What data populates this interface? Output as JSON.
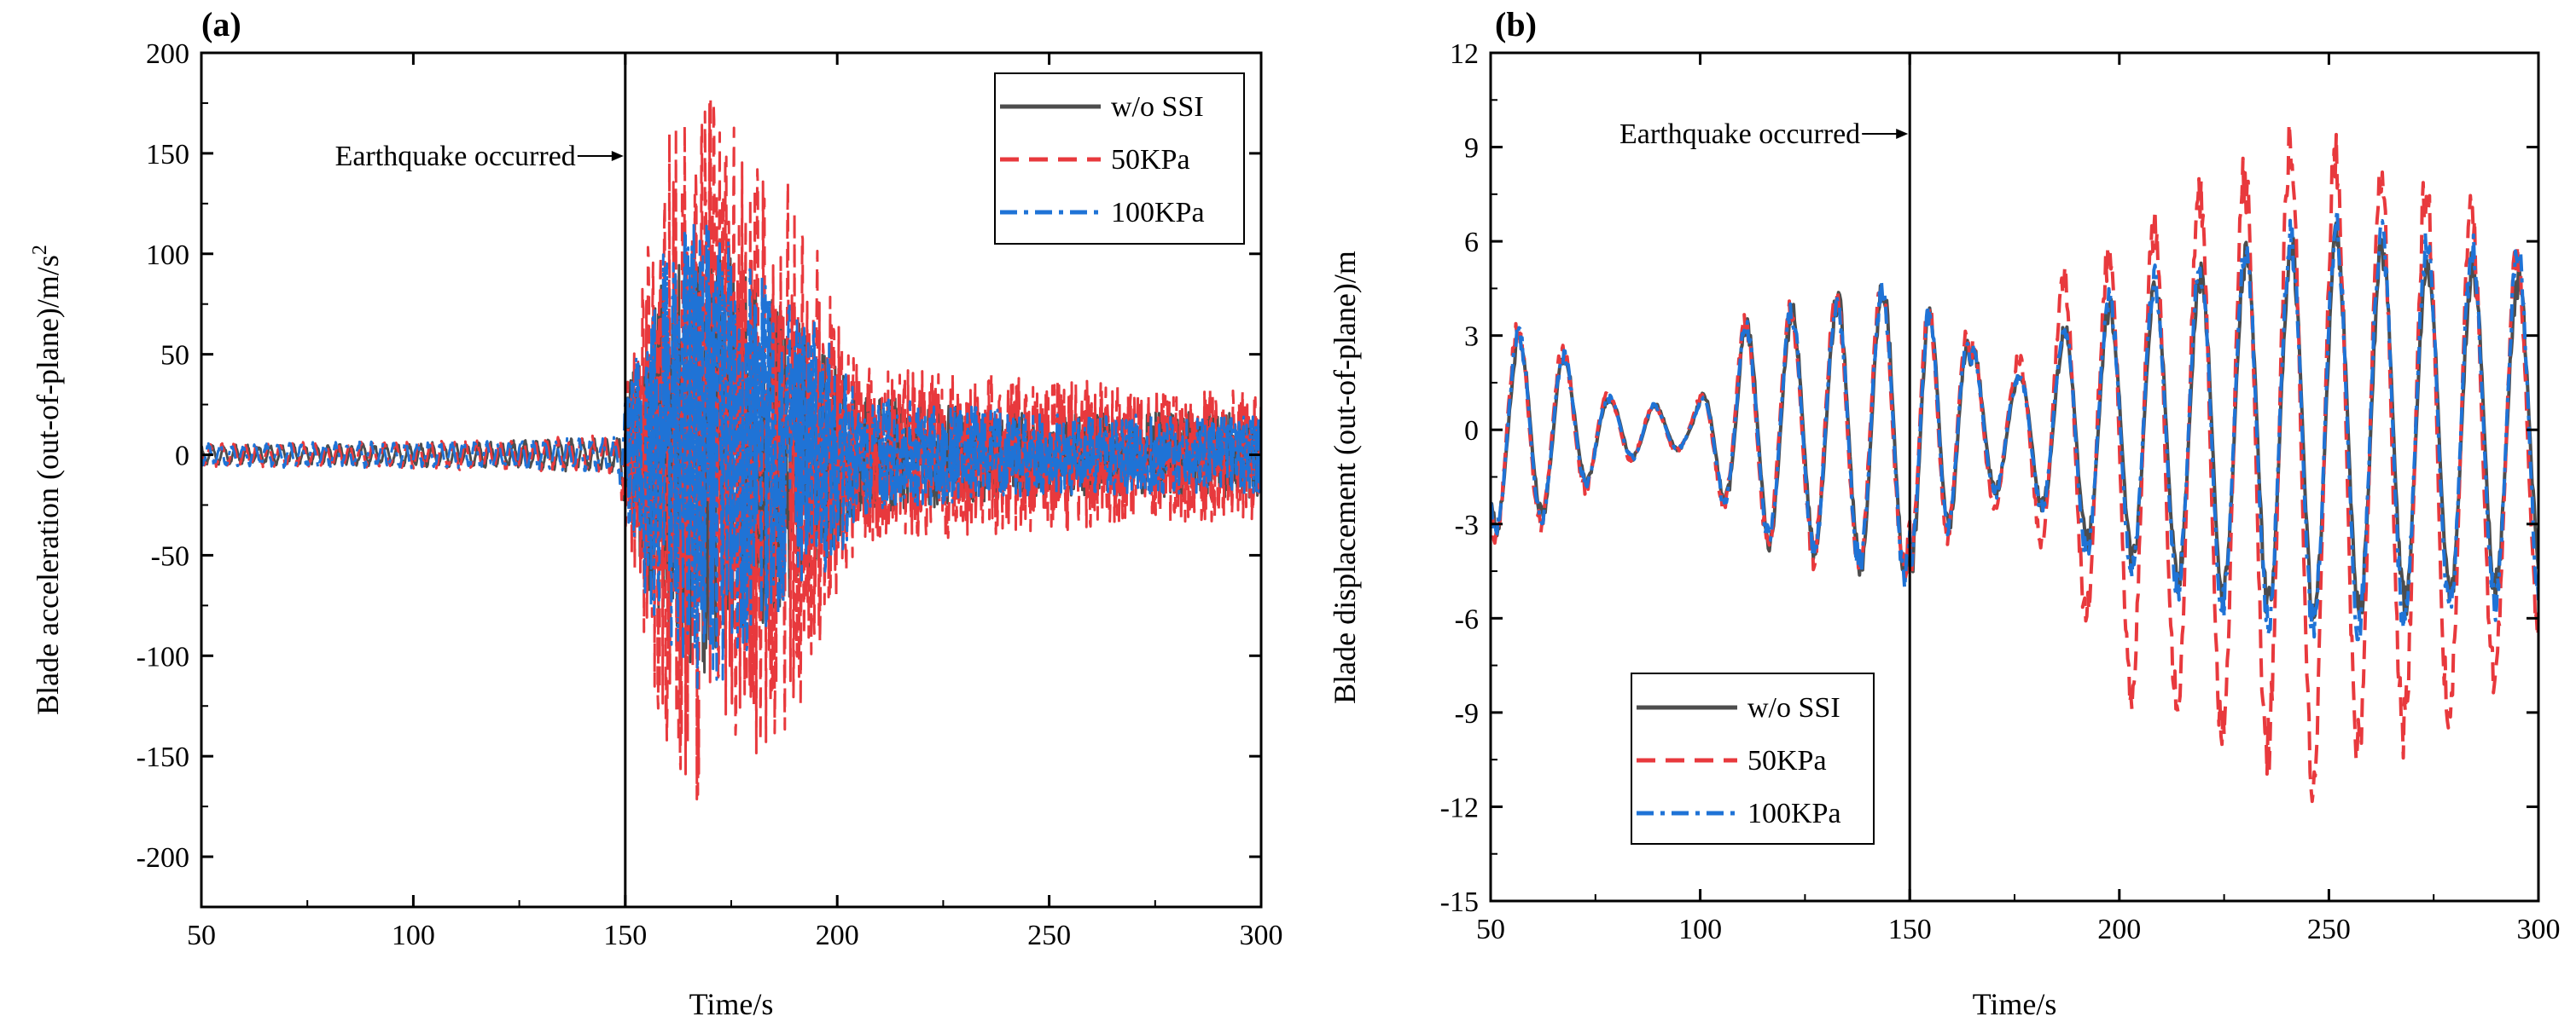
{
  "chart_data": [
    {
      "panel": "(a)",
      "type": "line",
      "xlabel": "Time/s",
      "ylabel": "Blade acceleration (out-of-plane)/m/s",
      "ylabel_sup": "2",
      "xlim": [
        50,
        300
      ],
      "ylim": [
        -225,
        200
      ],
      "xticks": [
        50,
        100,
        150,
        200,
        250,
        300
      ],
      "yticks": [
        -200,
        -150,
        -100,
        -50,
        0,
        50,
        100,
        150,
        200
      ],
      "legend_position": "top-right",
      "annotation": {
        "text": "Earthquake occurred",
        "x": 150
      },
      "series": [
        {
          "name": "w/o SSI",
          "color": "#4d4d4d",
          "dash": "solid",
          "envelope": [
            [
              50,
              5
            ],
            [
              100,
              6
            ],
            [
              148,
              9
            ],
            [
              152,
              45
            ],
            [
              160,
              100
            ],
            [
              170,
              110
            ],
            [
              180,
              90
            ],
            [
              190,
              70
            ],
            [
              200,
              50
            ],
            [
              205,
              30
            ],
            [
              250,
              20
            ],
            [
              300,
              22
            ]
          ]
        },
        {
          "name": "50KPa",
          "color": "#e8393d",
          "dash": "dashed",
          "envelope": [
            [
              50,
              6
            ],
            [
              100,
              7
            ],
            [
              148,
              10
            ],
            [
              152,
              60
            ],
            [
              160,
              165
            ],
            [
              170,
              180
            ],
            [
              180,
              150
            ],
            [
              190,
              140
            ],
            [
              200,
              70
            ],
            [
              205,
              45
            ],
            [
              250,
              38
            ],
            [
              300,
              32
            ]
          ]
        },
        {
          "name": "100KPa",
          "color": "#1f73d6",
          "dash": "dashdot",
          "envelope": [
            [
              50,
              6
            ],
            [
              100,
              7
            ],
            [
              148,
              9
            ],
            [
              152,
              50
            ],
            [
              160,
              110
            ],
            [
              170,
              120
            ],
            [
              180,
              95
            ],
            [
              190,
              75
            ],
            [
              200,
              55
            ],
            [
              205,
              30
            ],
            [
              250,
              20
            ],
            [
              300,
              20
            ]
          ]
        }
      ]
    },
    {
      "panel": "(b)",
      "type": "line",
      "xlabel": "Time/s",
      "ylabel": "Blade displacement (out-of-plane)/m",
      "xlim": [
        50,
        300
      ],
      "ylim": [
        -15,
        12
      ],
      "xticks": [
        50,
        100,
        150,
        200,
        250,
        300
      ],
      "yticks": [
        -15,
        -12,
        -9,
        -6,
        -3,
        0,
        3,
        6,
        9,
        12
      ],
      "legend_position": "bottom-left",
      "annotation": {
        "text": "Earthquake occurred",
        "x": 150
      },
      "series": [
        {
          "name": "w/o SSI",
          "color": "#4d4d4d",
          "dash": "solid",
          "envelope": [
            [
              50,
              3.2
            ],
            [
              65,
              2.6
            ],
            [
              78,
              1
            ],
            [
              88,
              0.8
            ],
            [
              98,
              0.5
            ],
            [
              110,
              3.2
            ],
            [
              130,
              4
            ],
            [
              148,
              4.6
            ],
            [
              160,
              3
            ],
            [
              175,
              1.5
            ],
            [
              190,
              3.5
            ],
            [
              210,
              4.5
            ],
            [
              230,
              5.5
            ],
            [
              250,
              6
            ],
            [
              270,
              5.5
            ],
            [
              290,
              5
            ],
            [
              300,
              4.5
            ]
          ]
        },
        {
          "name": "50KPa",
          "color": "#e8393d",
          "dash": "dashed",
          "envelope": [
            [
              50,
              3.4
            ],
            [
              65,
              2.9
            ],
            [
              78,
              1.1
            ],
            [
              88,
              0.8
            ],
            [
              98,
              0.6
            ],
            [
              110,
              3.3
            ],
            [
              130,
              4.1
            ],
            [
              148,
              4.5
            ],
            [
              160,
              3.2
            ],
            [
              175,
              2
            ],
            [
              190,
              5.5
            ],
            [
              200,
              7
            ],
            [
              215,
              8
            ],
            [
              230,
              9
            ],
            [
              245,
              10
            ],
            [
              260,
              9
            ],
            [
              275,
              8.5
            ],
            [
              290,
              7
            ],
            [
              300,
              6
            ]
          ]
        },
        {
          "name": "100KPa",
          "color": "#1f73d6",
          "dash": "dashdot",
          "envelope": [
            [
              50,
              3.3
            ],
            [
              65,
              2.7
            ],
            [
              78,
              1
            ],
            [
              88,
              0.8
            ],
            [
              98,
              0.5
            ],
            [
              110,
              3.2
            ],
            [
              130,
              4
            ],
            [
              148,
              4.6
            ],
            [
              160,
              3
            ],
            [
              175,
              1.6
            ],
            [
              190,
              3.7
            ],
            [
              210,
              4.8
            ],
            [
              230,
              5.8
            ],
            [
              250,
              6.4
            ],
            [
              270,
              6
            ],
            [
              290,
              5.5
            ],
            [
              300,
              5.5
            ]
          ]
        }
      ]
    }
  ]
}
